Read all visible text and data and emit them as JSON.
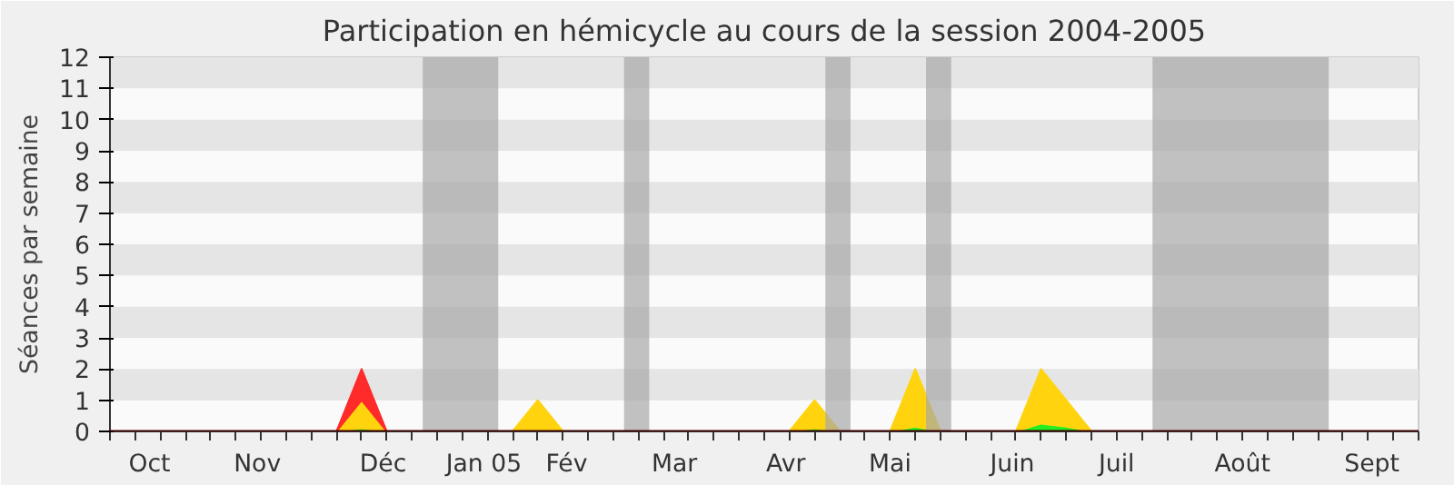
{
  "chart_data": {
    "type": "area",
    "title": "Participation en hémicycle au cours de la session 2004-2005",
    "ylabel": "Séances par semaine",
    "x": [
      "2004-09-27",
      "2004-10-04",
      "2004-10-11",
      "2004-10-18",
      "2004-10-25",
      "2004-11-01",
      "2004-11-08",
      "2004-11-15",
      "2004-11-22",
      "2004-11-29",
      "2004-12-06",
      "2004-12-13",
      "2004-12-20",
      "2004-12-27",
      "2005-01-03",
      "2005-01-10",
      "2005-01-17",
      "2005-01-24",
      "2005-01-31",
      "2005-02-07",
      "2005-02-14",
      "2005-02-21",
      "2005-02-28",
      "2005-03-07",
      "2005-03-14",
      "2005-03-21",
      "2005-03-28",
      "2005-04-04",
      "2005-04-11",
      "2005-04-18",
      "2005-04-25",
      "2005-05-02",
      "2005-05-09",
      "2005-05-16",
      "2005-05-23",
      "2005-05-30",
      "2005-06-06",
      "2005-06-13",
      "2005-06-20",
      "2005-06-27",
      "2005-07-04",
      "2005-07-11",
      "2005-07-18",
      "2005-07-25",
      "2005-08-01",
      "2005-08-08",
      "2005-08-15",
      "2005-08-22",
      "2005-08-29",
      "2005-09-05",
      "2005-09-12",
      "2005-09-19",
      "2005-09-26"
    ],
    "series": [
      {
        "color": "#22ee22",
        "values": [
          0,
          0,
          0,
          0,
          0,
          0,
          0,
          0,
          0,
          0,
          0.1,
          0,
          0,
          0,
          0,
          0,
          0,
          0.05,
          0,
          0,
          0,
          0,
          0,
          0,
          0,
          0,
          0,
          0,
          0.1,
          0,
          0,
          0,
          0.15,
          0,
          0,
          0,
          0,
          0.25,
          0.15,
          0,
          0,
          0,
          0,
          0,
          0,
          0,
          0,
          0,
          0,
          0,
          0,
          0,
          0
        ]
      },
      {
        "color": "#ffd40f",
        "values": [
          0,
          0,
          0,
          0,
          0,
          0,
          0,
          0,
          0,
          0,
          0.9,
          0,
          0,
          0,
          0,
          0,
          0,
          0.95,
          0,
          0,
          0,
          0,
          0,
          0,
          0,
          0,
          0,
          0,
          0.9,
          0,
          0,
          0,
          1.85,
          0,
          0,
          0,
          0,
          1.75,
          0.85,
          0,
          0,
          0,
          0,
          0,
          0,
          0,
          0,
          0,
          0,
          0,
          0,
          0,
          0
        ]
      },
      {
        "color": "#ff2a2a",
        "values": [
          null,
          null,
          null,
          null,
          null,
          null,
          null,
          null,
          null,
          0,
          1,
          0,
          null,
          null,
          null,
          null,
          null,
          null,
          null,
          null,
          null,
          null,
          null,
          null,
          null,
          null,
          null,
          null,
          null,
          null,
          null,
          null,
          null,
          null,
          null,
          null,
          null,
          null,
          null,
          null,
          null,
          null,
          null,
          null,
          null,
          null,
          null,
          null,
          null,
          null,
          null,
          null,
          null
        ]
      }
    ],
    "stacked": true,
    "xlim": [
      "2004-09-27",
      "2005-09-26"
    ],
    "xticks": [
      {
        "value": "2004-10-08",
        "label": "Oct"
      },
      {
        "value": "2004-11-07",
        "label": "Nov"
      },
      {
        "value": "2004-12-12",
        "label": "Déc"
      },
      {
        "value": "2005-01-09",
        "label": "Jan 05"
      },
      {
        "value": "2005-02-01",
        "label": "Fév"
      },
      {
        "value": "2005-03-03",
        "label": "Mar"
      },
      {
        "value": "2005-04-03",
        "label": "Avr"
      },
      {
        "value": "2005-05-02",
        "label": "Mai"
      },
      {
        "value": "2005-06-05",
        "label": "Juin"
      },
      {
        "value": "2005-07-04",
        "label": "Juil"
      },
      {
        "value": "2005-08-08",
        "label": "Août"
      },
      {
        "value": "2005-09-13",
        "label": "Sept"
      },
      {
        "value": "2004-09-27",
        "label": null
      },
      {
        "value": "2004-10-04",
        "label": null
      },
      {
        "value": "2004-10-11",
        "label": null
      },
      {
        "value": "2004-10-18",
        "label": null
      },
      {
        "value": "2004-10-25",
        "label": null
      },
      {
        "value": "2004-11-01",
        "label": null
      },
      {
        "value": "2004-11-08",
        "label": null
      },
      {
        "value": "2004-11-15",
        "label": null
      },
      {
        "value": "2004-11-22",
        "label": null
      },
      {
        "value": "2004-11-29",
        "label": null
      },
      {
        "value": "2004-12-06",
        "label": null
      },
      {
        "value": "2004-12-13",
        "label": null
      },
      {
        "value": "2004-12-20",
        "label": null
      },
      {
        "value": "2004-12-27",
        "label": null
      },
      {
        "value": "2005-01-03",
        "label": null
      },
      {
        "value": "2005-01-10",
        "label": null
      },
      {
        "value": "2005-01-17",
        "label": null
      },
      {
        "value": "2005-01-24",
        "label": null
      },
      {
        "value": "2005-01-31",
        "label": null
      },
      {
        "value": "2005-02-07",
        "label": null
      },
      {
        "value": "2005-02-14",
        "label": null
      },
      {
        "value": "2005-02-21",
        "label": null
      },
      {
        "value": "2005-02-28",
        "label": null
      },
      {
        "value": "2005-03-07",
        "label": null
      },
      {
        "value": "2005-03-14",
        "label": null
      },
      {
        "value": "2005-03-21",
        "label": null
      },
      {
        "value": "2005-03-28",
        "label": null
      },
      {
        "value": "2005-04-04",
        "label": null
      },
      {
        "value": "2005-04-11",
        "label": null
      },
      {
        "value": "2005-04-18",
        "label": null
      },
      {
        "value": "2005-04-25",
        "label": null
      },
      {
        "value": "2005-05-02",
        "label": null
      },
      {
        "value": "2005-05-09",
        "label": null
      },
      {
        "value": "2005-05-16",
        "label": null
      },
      {
        "value": "2005-05-23",
        "label": null
      },
      {
        "value": "2005-05-30",
        "label": null
      },
      {
        "value": "2005-06-06",
        "label": null
      },
      {
        "value": "2005-06-13",
        "label": null
      },
      {
        "value": "2005-06-20",
        "label": null
      },
      {
        "value": "2005-06-27",
        "label": null
      },
      {
        "value": "2005-07-04",
        "label": null
      },
      {
        "value": "2005-07-11",
        "label": null
      },
      {
        "value": "2005-07-18",
        "label": null
      },
      {
        "value": "2005-07-25",
        "label": null
      },
      {
        "value": "2005-08-01",
        "label": null
      },
      {
        "value": "2005-08-08",
        "label": null
      },
      {
        "value": "2005-08-15",
        "label": null
      },
      {
        "value": "2005-08-22",
        "label": null
      },
      {
        "value": "2005-08-29",
        "label": null
      },
      {
        "value": "2005-09-05",
        "label": null
      },
      {
        "value": "2005-09-12",
        "label": null
      },
      {
        "value": "2005-09-19",
        "label": null
      },
      {
        "value": "2005-09-26",
        "label": null
      }
    ],
    "ylim": [
      0,
      12
    ],
    "yticks": [
      0,
      1,
      2,
      3,
      4,
      5,
      6,
      7,
      8,
      9,
      10,
      11,
      12
    ],
    "bands": [
      {
        "axis": "y",
        "from": 1,
        "to": 2,
        "color": "#e5e5e5"
      },
      {
        "axis": "y",
        "from": 3,
        "to": 4,
        "color": "#e5e5e5"
      },
      {
        "axis": "y",
        "from": 5,
        "to": 6,
        "color": "#e5e5e5"
      },
      {
        "axis": "y",
        "from": 7,
        "to": 8,
        "color": "#e5e5e5"
      },
      {
        "axis": "y",
        "from": 9,
        "to": 10,
        "color": "#e5e5e5"
      },
      {
        "axis": "y",
        "from": 11,
        "to": 12,
        "color": "#e5e5e5"
      },
      {
        "axis": "x",
        "from": "2004-12-23",
        "to": "2005-01-13",
        "color": "#a8a8a8"
      },
      {
        "axis": "x",
        "from": "2005-02-17",
        "to": "2005-02-24",
        "color": "#a8a8a8"
      },
      {
        "axis": "x",
        "from": "2005-04-14",
        "to": "2005-04-21",
        "color": "#a8a8a8"
      },
      {
        "axis": "x",
        "from": "2005-05-12",
        "to": "2005-05-19",
        "color": "#a8a8a8"
      },
      {
        "axis": "x",
        "from": "2005-07-14",
        "to": "2005-09-01",
        "color": "#a8a8a8"
      }
    ]
  }
}
